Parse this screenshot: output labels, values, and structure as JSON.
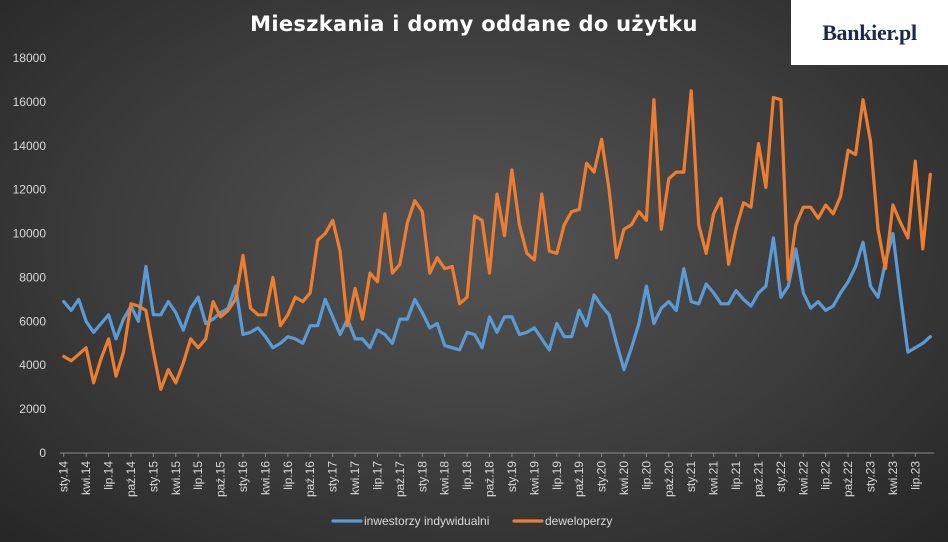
{
  "brand": {
    "logo_text": "Bankier.pl"
  },
  "chart_data": {
    "type": "line",
    "title": "Mieszkania i domy oddane do użytku",
    "xlabel": "",
    "ylabel": "",
    "ylim": [
      0,
      18000
    ],
    "yticks": [
      0,
      2000,
      4000,
      6000,
      8000,
      10000,
      12000,
      14000,
      16000,
      18000
    ],
    "grid": false,
    "legend_position": "bottom",
    "x_tick_labels": [
      "sty.14",
      "kwi.14",
      "lip.14",
      "paź.14",
      "sty.15",
      "kwi.15",
      "lip.15",
      "paź.15",
      "sty.16",
      "kwi.16",
      "lip.16",
      "paź.16",
      "sty.17",
      "kwi.17",
      "lip.17",
      "paź.17",
      "sty.18",
      "kwi.18",
      "lip.18",
      "paź.18",
      "sty.19",
      "kwi.19",
      "lip.19",
      "paź.19",
      "sty.20",
      "kwi.20",
      "lip.20",
      "paź.20",
      "sty.21",
      "kwi.21",
      "lip.21",
      "paź.21",
      "sty.22",
      "kwi.22",
      "lip.22",
      "paź.22",
      "sty.23",
      "kwi.23",
      "lip.23"
    ],
    "series": [
      {
        "name": "inwestorzy indywidualni",
        "color": "#5b9bd5",
        "values": [
          6900,
          6500,
          7000,
          6000,
          5500,
          5900,
          6300,
          5200,
          6100,
          6700,
          6000,
          8500,
          6300,
          6300,
          6900,
          6400,
          5600,
          6600,
          7100,
          5900,
          6100,
          6400,
          6600,
          7600,
          5400,
          5500,
          5700,
          5300,
          4800,
          5000,
          5300,
          5200,
          5000,
          5800,
          5800,
          7000,
          6200,
          5400,
          6100,
          5200,
          5200,
          4800,
          5600,
          5400,
          5000,
          6100,
          6100,
          7000,
          6400,
          5700,
          5900,
          4900,
          4800,
          4700,
          5500,
          5400,
          4800,
          6200,
          5500,
          6200,
          6200,
          5400,
          5500,
          5700,
          5200,
          4700,
          5900,
          5300,
          5300,
          6500,
          5800,
          7200,
          6700,
          6300,
          5000,
          3800,
          4800,
          5900,
          7600,
          5900,
          6600,
          6900,
          6500,
          8400,
          6900,
          6800,
          7700,
          7300,
          6800,
          6800,
          7400,
          7000,
          6700,
          7300,
          7600,
          9800,
          7100,
          7600,
          9300,
          7300,
          6600,
          6900,
          6500,
          6700,
          7300,
          7800,
          8500,
          9600,
          7600,
          7100,
          8700,
          10000,
          7200,
          4600,
          4800,
          5000,
          5300
        ]
      },
      {
        "name": "deweloperzy",
        "color": "#ed7d31",
        "values": [
          4400,
          4200,
          4500,
          4800,
          3200,
          4300,
          5200,
          3500,
          4600,
          6800,
          6700,
          6500,
          4600,
          2900,
          3800,
          3200,
          4100,
          5200,
          4800,
          5200,
          6900,
          6200,
          6500,
          7000,
          9000,
          6600,
          6300,
          6300,
          8000,
          5800,
          6300,
          7100,
          6900,
          7300,
          9700,
          10000,
          10600,
          9200,
          5800,
          7500,
          6100,
          8200,
          7800,
          10900,
          8200,
          8600,
          10500,
          11500,
          11000,
          8200,
          8900,
          8400,
          8500,
          6800,
          7100,
          10800,
          10600,
          8200,
          11800,
          9900,
          12900,
          10400,
          9100,
          8800,
          11800,
          9200,
          9100,
          10400,
          11000,
          11100,
          13200,
          12800,
          14300,
          12000,
          8900,
          10200,
          10400,
          11000,
          10600,
          16100,
          10200,
          12500,
          12800,
          12800,
          16500,
          10400,
          9100,
          10900,
          11600,
          8600,
          10200,
          11400,
          11200,
          14100,
          12100,
          16200,
          16100,
          7900,
          10400,
          11200,
          11200,
          10700,
          11300,
          10900,
          11700,
          13800,
          13600,
          16100,
          14200,
          10200,
          8400,
          11300,
          10500,
          9800,
          13300,
          9300,
          12700
        ]
      }
    ]
  }
}
